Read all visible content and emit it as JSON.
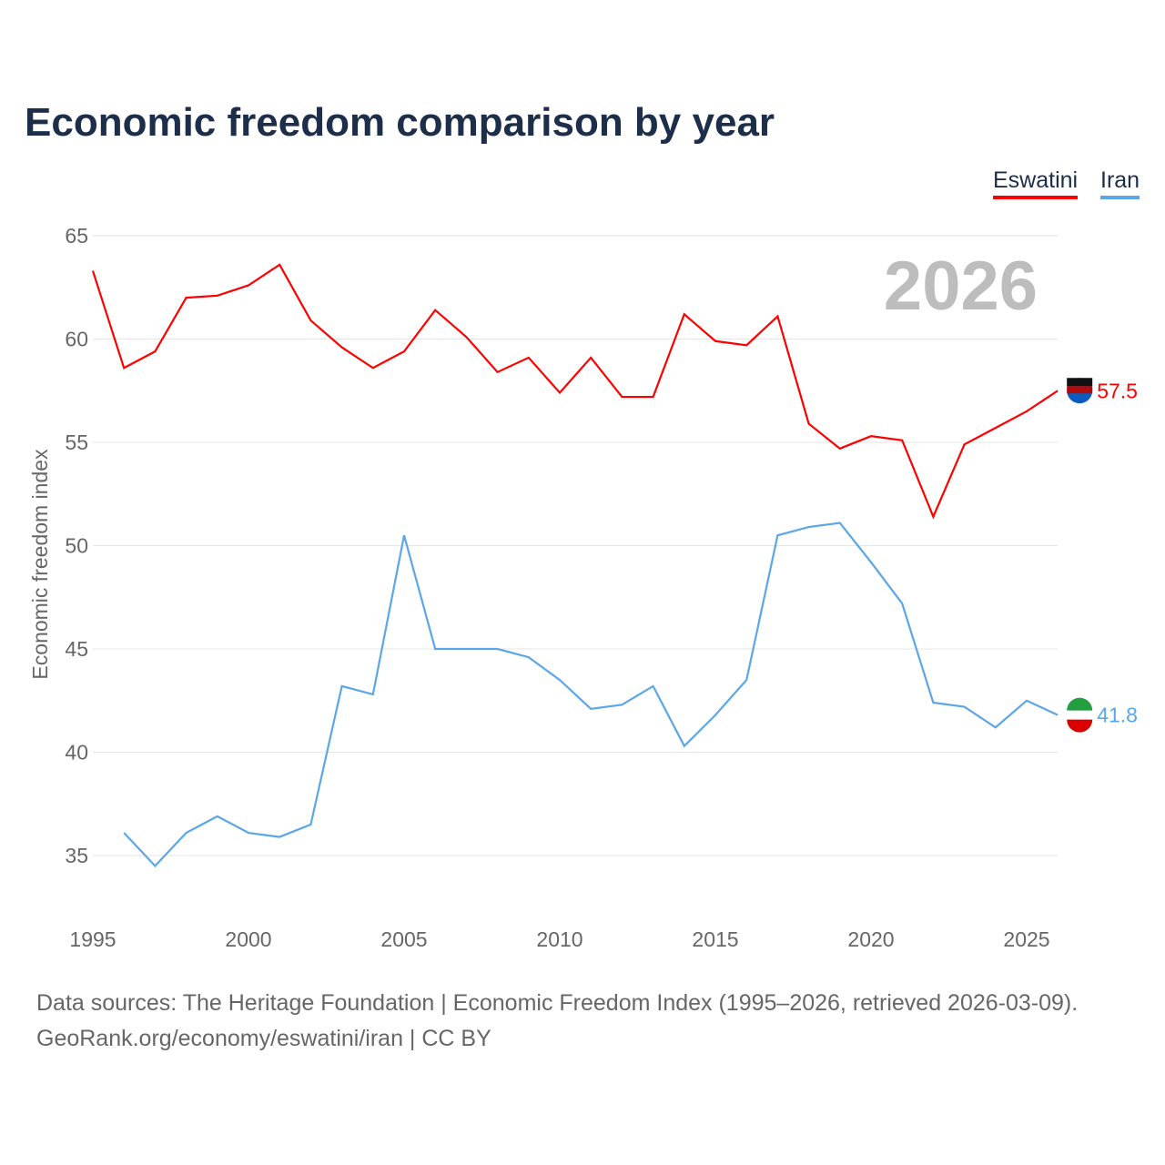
{
  "chart_data": {
    "type": "line",
    "title": "Economic freedom comparison by year",
    "ylabel": "Economic freedom index",
    "xlabel": "",
    "ylim": [
      32,
      65
    ],
    "xlim": [
      1995,
      2026
    ],
    "yticks": [
      35,
      40,
      45,
      50,
      55,
      60,
      65
    ],
    "xticks": [
      1995,
      2000,
      2005,
      2010,
      2015,
      2020,
      2025
    ],
    "grid": true,
    "legend_placement": "top-right",
    "year_label": "2026",
    "series": [
      {
        "name": "Eswatini",
        "color": "#ff0000",
        "end_label": "57.5",
        "x": [
          1995,
          1996,
          1997,
          1998,
          1999,
          2000,
          2001,
          2002,
          2003,
          2004,
          2005,
          2006,
          2007,
          2008,
          2009,
          2010,
          2011,
          2012,
          2013,
          2014,
          2015,
          2016,
          2017,
          2018,
          2019,
          2020,
          2021,
          2022,
          2023,
          2024,
          2025,
          2026
        ],
        "values": [
          63.3,
          58.6,
          59.4,
          62.0,
          62.1,
          62.6,
          63.6,
          60.9,
          59.6,
          58.6,
          59.4,
          61.4,
          60.1,
          58.4,
          59.1,
          57.4,
          59.1,
          57.2,
          57.2,
          61.2,
          59.9,
          59.7,
          61.1,
          55.9,
          54.7,
          55.3,
          55.1,
          51.4,
          54.9,
          55.7,
          56.5,
          57.5
        ]
      },
      {
        "name": "Iran",
        "color": "#5aa6e8",
        "end_label": "41.8",
        "x": [
          1996,
          1997,
          1998,
          1999,
          2000,
          2001,
          2002,
          2003,
          2004,
          2005,
          2006,
          2007,
          2008,
          2009,
          2010,
          2011,
          2012,
          2013,
          2014,
          2015,
          2016,
          2017,
          2018,
          2019,
          2020,
          2021,
          2022,
          2023,
          2024,
          2025,
          2026
        ],
        "values": [
          36.1,
          34.5,
          36.1,
          36.9,
          36.1,
          35.9,
          36.5,
          43.2,
          42.8,
          50.5,
          45.0,
          45.0,
          45.0,
          44.6,
          43.5,
          42.1,
          42.3,
          43.2,
          40.3,
          41.8,
          43.5,
          50.5,
          50.9,
          51.1,
          49.2,
          47.2,
          42.4,
          42.2,
          41.2,
          42.5,
          41.8
        ]
      }
    ]
  },
  "source_line1": "Data sources: The Heritage Foundation | Economic Freedom Index (1995–2026, retrieved 2026-03-09).",
  "source_line2": "GeoRank.org/economy/eswatini/iran | CC BY"
}
